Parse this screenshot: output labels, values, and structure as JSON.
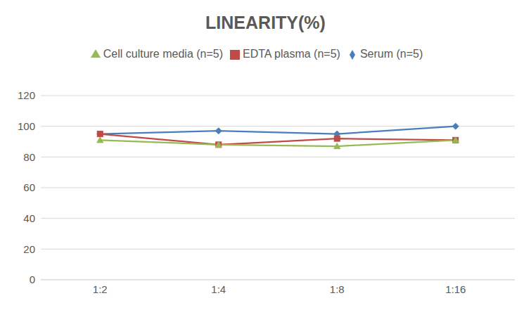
{
  "chart_data": {
    "type": "line",
    "title": "LINEARITY(%)",
    "categories": [
      "1:2",
      "1:4",
      "1:8",
      "1:16"
    ],
    "series": [
      {
        "name": "Serum (n=5)",
        "color": "#4a7ebb",
        "marker": "diamond",
        "values": [
          95,
          97,
          95,
          100
        ]
      },
      {
        "name": "EDTA plasma (n=5)",
        "color": "#be4b48",
        "marker": "square",
        "values": [
          95,
          88,
          92,
          91
        ]
      },
      {
        "name": "Cell culture media (n=5)",
        "color": "#98b954",
        "marker": "triangle",
        "values": [
          91,
          88,
          87,
          91
        ]
      }
    ],
    "ylim": [
      0,
      120
    ],
    "yticks": [
      0,
      20,
      40,
      60,
      80,
      100,
      120
    ],
    "grid": true,
    "legend": "top"
  }
}
